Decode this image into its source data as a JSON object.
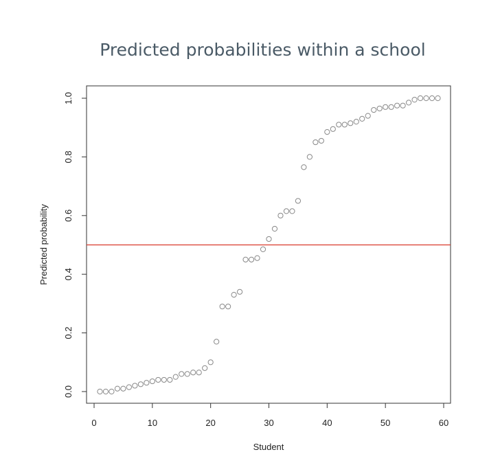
{
  "title": "Predicted probabilities within a school",
  "chart_data": {
    "type": "scatter",
    "title": "Predicted probabilities within a school",
    "xlabel": "Student",
    "ylabel": "Predicted probability",
    "xlim": [
      0,
      60
    ],
    "ylim": [
      0,
      1
    ],
    "x_ticks": [
      "0",
      "10",
      "20",
      "30",
      "40",
      "50",
      "60"
    ],
    "y_ticks": [
      "0.0",
      "0.2",
      "0.4",
      "0.6",
      "0.8",
      "1.0"
    ],
    "hline": {
      "y": 0.5,
      "color": "#d9392b"
    },
    "marker_color": "#888888",
    "x": [
      1,
      2,
      3,
      4,
      5,
      6,
      7,
      8,
      9,
      10,
      11,
      12,
      13,
      14,
      15,
      16,
      17,
      18,
      19,
      20,
      21,
      22,
      23,
      24,
      25,
      26,
      27,
      28,
      29,
      30,
      31,
      32,
      33,
      34,
      35,
      36,
      37,
      38,
      39,
      40,
      41,
      42,
      43,
      44,
      45,
      46,
      47,
      48,
      49,
      50,
      51,
      52,
      53,
      54,
      55,
      56,
      57,
      58,
      59
    ],
    "y": [
      0.0,
      0.0,
      0.0,
      0.01,
      0.01,
      0.015,
      0.02,
      0.025,
      0.03,
      0.035,
      0.04,
      0.04,
      0.04,
      0.05,
      0.06,
      0.06,
      0.065,
      0.065,
      0.08,
      0.1,
      0.17,
      0.29,
      0.29,
      0.33,
      0.34,
      0.45,
      0.45,
      0.455,
      0.485,
      0.52,
      0.555,
      0.6,
      0.615,
      0.615,
      0.65,
      0.765,
      0.8,
      0.85,
      0.855,
      0.885,
      0.895,
      0.91,
      0.91,
      0.915,
      0.92,
      0.93,
      0.94,
      0.96,
      0.965,
      0.97,
      0.97,
      0.975,
      0.975,
      0.985,
      0.995,
      1.0,
      1.0,
      1.0,
      1.0
    ]
  }
}
